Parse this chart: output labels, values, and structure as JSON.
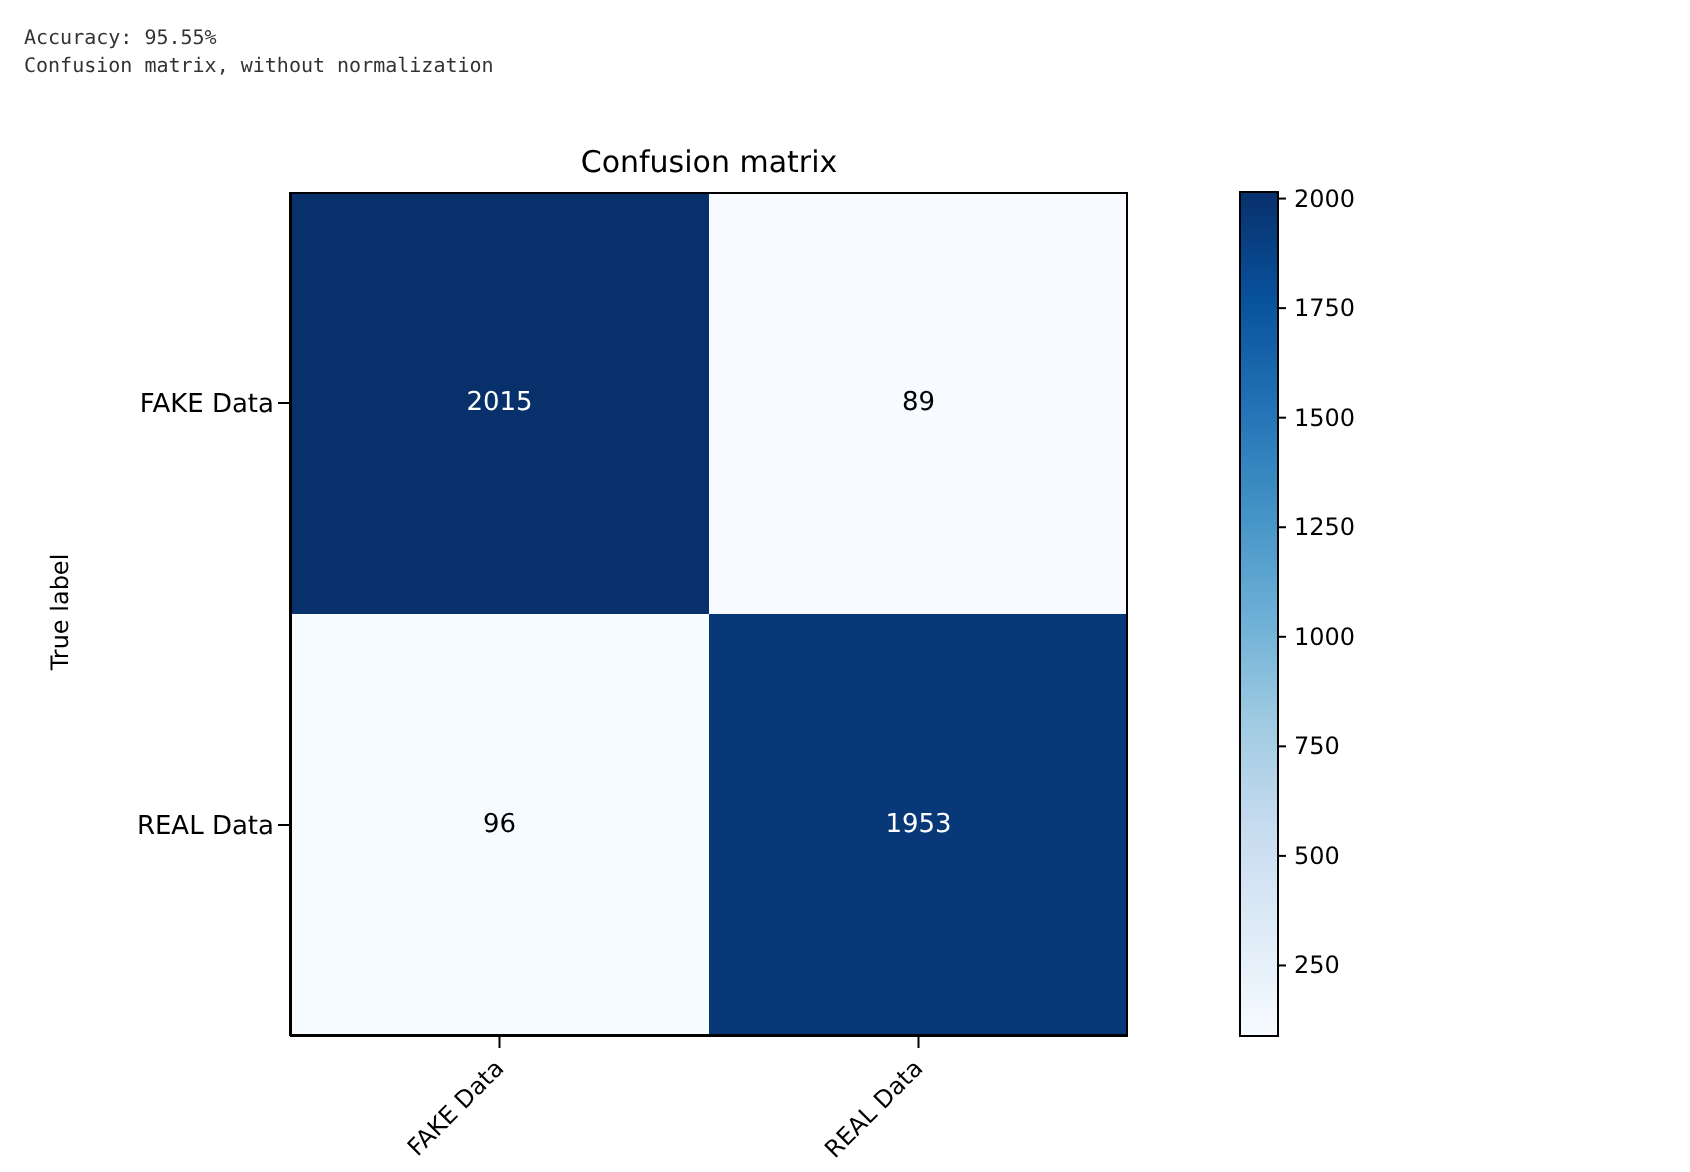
{
  "chart_data": {
    "type": "heatmap",
    "title": "Confusion matrix",
    "ylabel": "True label",
    "annotations": [
      "Accuracy: 95.55%",
      "Confusion matrix, without normalization"
    ],
    "categories": [
      "FAKE Data",
      "REAL Data"
    ],
    "y_categories": [
      "FAKE Data",
      "REAL Data"
    ],
    "cells": [
      [
        2015,
        89
      ],
      [
        96,
        1953
      ]
    ],
    "data_labels": true,
    "clim": [
      89,
      2015
    ],
    "cticks": [
      250,
      500,
      750,
      1000,
      1250,
      1500,
      1750,
      2000
    ]
  }
}
